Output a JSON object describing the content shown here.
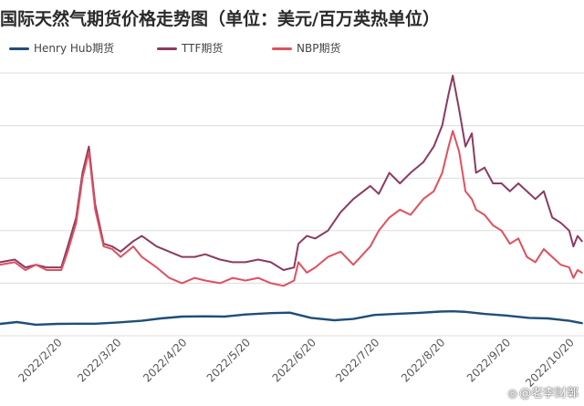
{
  "chart_data": {
    "type": "line",
    "title": "国际天然气期货价格走势图（单位：美元/百万英热单位）",
    "xlabel": "",
    "ylabel": "",
    "ylim": [
      0,
      100
    ],
    "grid": "horizontal",
    "legend_position": "top-left",
    "x_ticks": [
      "2022/2/20",
      "2022/3/20",
      "2022/4/20",
      "2022/5/20",
      "2022/6/20",
      "2022/7/20",
      "2022/8/20",
      "2022/9/20",
      "2022/10/20"
    ],
    "series": [
      {
        "name": "Henry Hub期货",
        "color": "#1f4e79",
        "points": [
          [
            "2022-01-24",
            4.5
          ],
          [
            "2022-02-01",
            5.2
          ],
          [
            "2022-02-10",
            4.2
          ],
          [
            "2022-02-20",
            4.5
          ],
          [
            "2022-03-01",
            4.6
          ],
          [
            "2022-03-10",
            4.6
          ],
          [
            "2022-03-20",
            5.0
          ],
          [
            "2022-04-01",
            5.7
          ],
          [
            "2022-04-10",
            6.6
          ],
          [
            "2022-04-20",
            7.3
          ],
          [
            "2022-05-01",
            7.4
          ],
          [
            "2022-05-10",
            7.3
          ],
          [
            "2022-05-20",
            8.1
          ],
          [
            "2022-06-01",
            8.6
          ],
          [
            "2022-06-10",
            8.8
          ],
          [
            "2022-06-20",
            6.8
          ],
          [
            "2022-07-01",
            5.9
          ],
          [
            "2022-07-10",
            6.4
          ],
          [
            "2022-07-20",
            7.9
          ],
          [
            "2022-08-01",
            8.4
          ],
          [
            "2022-08-10",
            8.7
          ],
          [
            "2022-08-20",
            9.2
          ],
          [
            "2022-08-26",
            9.3
          ],
          [
            "2022-09-01",
            9.1
          ],
          [
            "2022-09-10",
            8.3
          ],
          [
            "2022-09-20",
            7.7
          ],
          [
            "2022-10-01",
            6.8
          ],
          [
            "2022-10-10",
            6.6
          ],
          [
            "2022-10-20",
            5.7
          ],
          [
            "2022-10-26",
            4.8
          ]
        ]
      },
      {
        "name": "TTF期货",
        "color": "#8b3a62",
        "points": [
          [
            "2022-01-24",
            28
          ],
          [
            "2022-01-31",
            29
          ],
          [
            "2022-02-05",
            26
          ],
          [
            "2022-02-10",
            27
          ],
          [
            "2022-02-15",
            26
          ],
          [
            "2022-02-22",
            26
          ],
          [
            "2022-02-25",
            34
          ],
          [
            "2022-03-01",
            45
          ],
          [
            "2022-03-04",
            62
          ],
          [
            "2022-03-07",
            72
          ],
          [
            "2022-03-10",
            50
          ],
          [
            "2022-03-14",
            35
          ],
          [
            "2022-03-18",
            34
          ],
          [
            "2022-03-22",
            32
          ],
          [
            "2022-03-28",
            36
          ],
          [
            "2022-04-01",
            38
          ],
          [
            "2022-04-08",
            34
          ],
          [
            "2022-04-14",
            32
          ],
          [
            "2022-04-20",
            30
          ],
          [
            "2022-04-26",
            30
          ],
          [
            "2022-05-01",
            31
          ],
          [
            "2022-05-08",
            29
          ],
          [
            "2022-05-14",
            28
          ],
          [
            "2022-05-20",
            28
          ],
          [
            "2022-05-26",
            29
          ],
          [
            "2022-06-01",
            28
          ],
          [
            "2022-06-07",
            25
          ],
          [
            "2022-06-12",
            26
          ],
          [
            "2022-06-14",
            35
          ],
          [
            "2022-06-18",
            38
          ],
          [
            "2022-06-22",
            37
          ],
          [
            "2022-06-28",
            40
          ],
          [
            "2022-07-04",
            47
          ],
          [
            "2022-07-10",
            52
          ],
          [
            "2022-07-18",
            57
          ],
          [
            "2022-07-22",
            54
          ],
          [
            "2022-07-27",
            62
          ],
          [
            "2022-08-01",
            58
          ],
          [
            "2022-08-06",
            62
          ],
          [
            "2022-08-12",
            66
          ],
          [
            "2022-08-17",
            72
          ],
          [
            "2022-08-21",
            80
          ],
          [
            "2022-08-24",
            92
          ],
          [
            "2022-08-26",
            99
          ],
          [
            "2022-08-29",
            86
          ],
          [
            "2022-09-01",
            72
          ],
          [
            "2022-09-04",
            77
          ],
          [
            "2022-09-06",
            62
          ],
          [
            "2022-09-10",
            64
          ],
          [
            "2022-09-14",
            58
          ],
          [
            "2022-09-18",
            58
          ],
          [
            "2022-09-22",
            55
          ],
          [
            "2022-09-26",
            58
          ],
          [
            "2022-09-30",
            55
          ],
          [
            "2022-10-04",
            52
          ],
          [
            "2022-10-08",
            55
          ],
          [
            "2022-10-12",
            45
          ],
          [
            "2022-10-16",
            43
          ],
          [
            "2022-10-20",
            40
          ],
          [
            "2022-10-22",
            34
          ],
          [
            "2022-10-24",
            38
          ],
          [
            "2022-10-26",
            36
          ]
        ]
      },
      {
        "name": "NBP期货",
        "color": "#e0505f",
        "points": [
          [
            "2022-01-24",
            27
          ],
          [
            "2022-01-31",
            28
          ],
          [
            "2022-02-05",
            25
          ],
          [
            "2022-02-10",
            27
          ],
          [
            "2022-02-15",
            25
          ],
          [
            "2022-02-22",
            25
          ],
          [
            "2022-02-25",
            32
          ],
          [
            "2022-03-01",
            43
          ],
          [
            "2022-03-04",
            60
          ],
          [
            "2022-03-07",
            70
          ],
          [
            "2022-03-10",
            48
          ],
          [
            "2022-03-14",
            34
          ],
          [
            "2022-03-18",
            33
          ],
          [
            "2022-03-22",
            30
          ],
          [
            "2022-03-28",
            34
          ],
          [
            "2022-04-01",
            30
          ],
          [
            "2022-04-08",
            26
          ],
          [
            "2022-04-14",
            22
          ],
          [
            "2022-04-20",
            20
          ],
          [
            "2022-04-26",
            22
          ],
          [
            "2022-05-01",
            21
          ],
          [
            "2022-05-08",
            20
          ],
          [
            "2022-05-14",
            22
          ],
          [
            "2022-05-20",
            21
          ],
          [
            "2022-05-26",
            22
          ],
          [
            "2022-06-01",
            20
          ],
          [
            "2022-06-07",
            19
          ],
          [
            "2022-06-12",
            21
          ],
          [
            "2022-06-14",
            28
          ],
          [
            "2022-06-18",
            24
          ],
          [
            "2022-06-22",
            26
          ],
          [
            "2022-06-28",
            30
          ],
          [
            "2022-07-04",
            32
          ],
          [
            "2022-07-10",
            27
          ],
          [
            "2022-07-18",
            34
          ],
          [
            "2022-07-22",
            40
          ],
          [
            "2022-07-27",
            45
          ],
          [
            "2022-08-01",
            48
          ],
          [
            "2022-08-06",
            46
          ],
          [
            "2022-08-12",
            52
          ],
          [
            "2022-08-17",
            55
          ],
          [
            "2022-08-21",
            62
          ],
          [
            "2022-08-24",
            72
          ],
          [
            "2022-08-26",
            78
          ],
          [
            "2022-08-29",
            70
          ],
          [
            "2022-09-01",
            55
          ],
          [
            "2022-09-04",
            52
          ],
          [
            "2022-09-06",
            48
          ],
          [
            "2022-09-10",
            46
          ],
          [
            "2022-09-14",
            42
          ],
          [
            "2022-09-18",
            40
          ],
          [
            "2022-09-22",
            35
          ],
          [
            "2022-09-26",
            37
          ],
          [
            "2022-09-30",
            30
          ],
          [
            "2022-10-04",
            28
          ],
          [
            "2022-10-08",
            33
          ],
          [
            "2022-10-12",
            30
          ],
          [
            "2022-10-16",
            27
          ],
          [
            "2022-10-20",
            26
          ],
          [
            "2022-10-22",
            22
          ],
          [
            "2022-10-24",
            25
          ],
          [
            "2022-10-26",
            24
          ]
        ]
      }
    ],
    "watermark": "@老李财鄣"
  }
}
